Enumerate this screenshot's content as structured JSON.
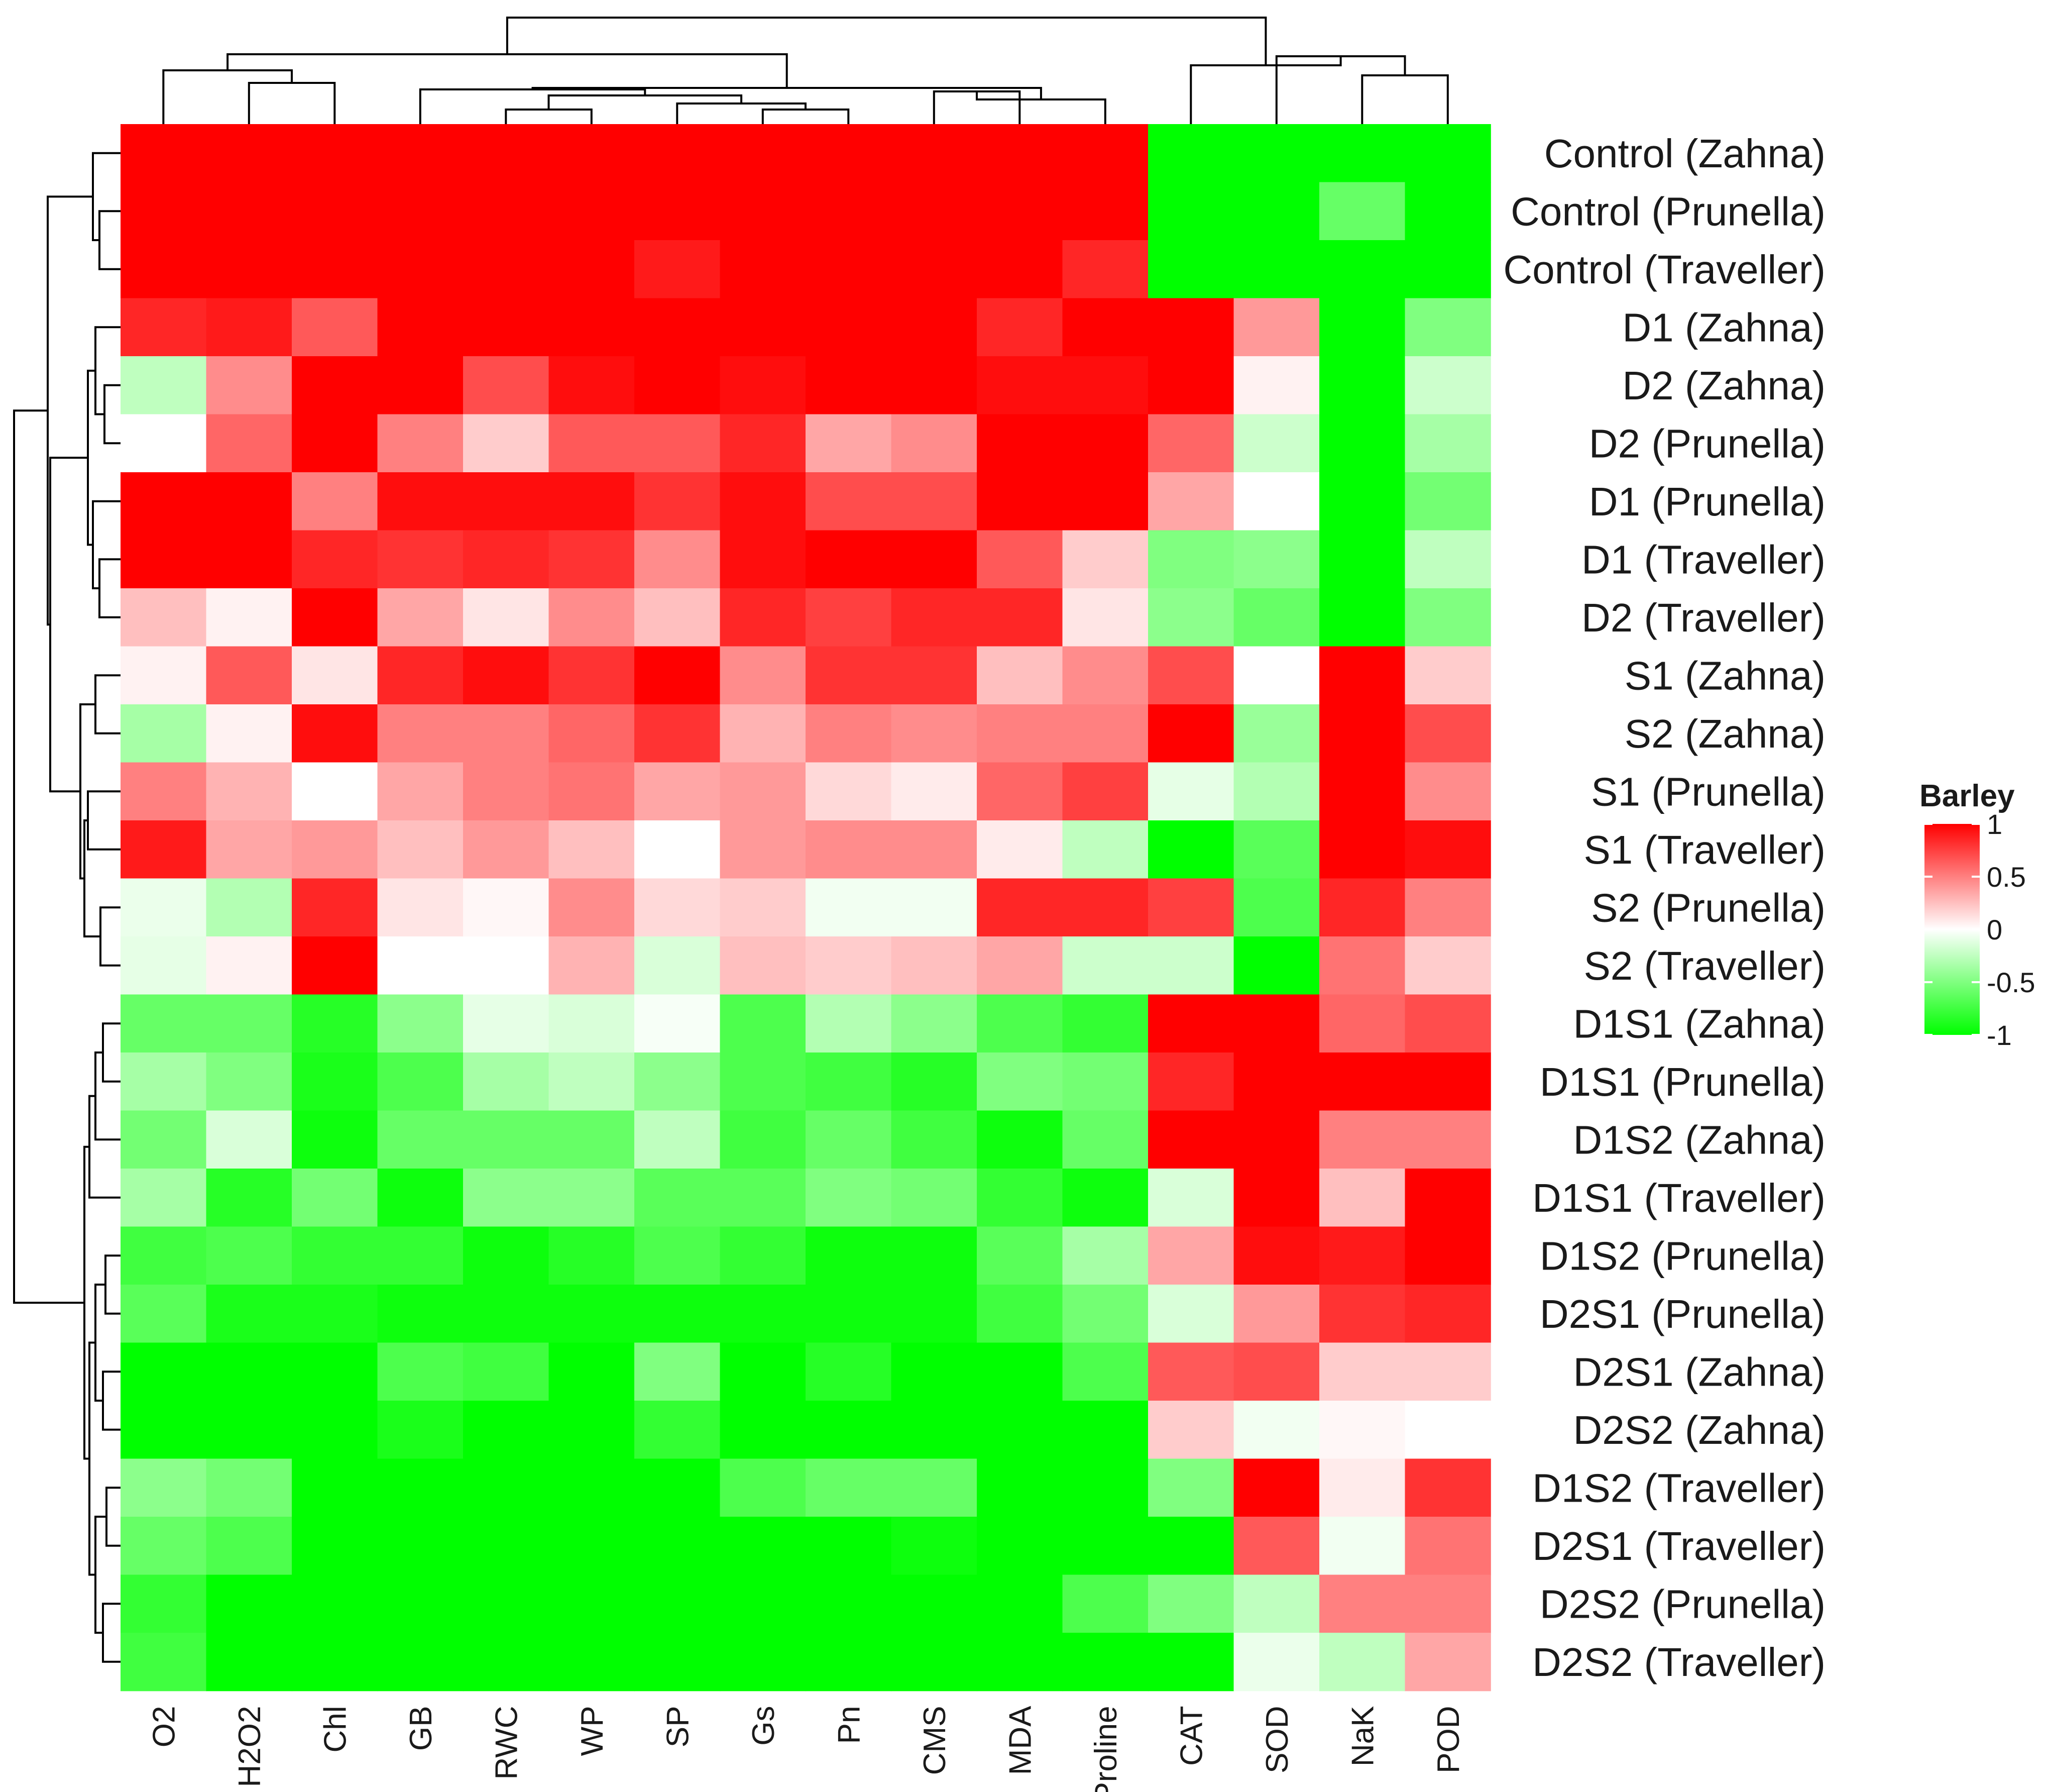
{
  "chart_data": {
    "type": "heatmap",
    "columns": [
      "O2",
      "H2O2",
      "Chl",
      "GB",
      "RWC",
      "WP",
      "SP",
      "Gs",
      "Pn",
      "CMS",
      "MDA",
      "Proline",
      "CAT",
      "SOD",
      "NaK",
      "POD"
    ],
    "rows": [
      "Control (Zahna)",
      "Control (Prunella)",
      "Control (Traveller)",
      "D1 (Zahna)",
      "D2 (Zahna)",
      "D2 (Prunella)",
      "D1 (Prunella)",
      "D1 (Traveller)",
      "D2 (Traveller)",
      "S1 (Zahna)",
      "S2 (Zahna)",
      "S1 (Prunella)",
      "S1 (Traveller)",
      "S2 (Prunella)",
      "S2 (Traveller)",
      "D1S1 (Zahna)",
      "D1S1 (Prunella)",
      "D1S2 (Zahna)",
      "D1S1 (Traveller)",
      "D1S2 (Prunella)",
      "D2S1 (Prunella)",
      "D2S1 (Zahna)",
      "D2S2 (Zahna)",
      "D1S2 (Traveller)",
      "D2S1 (Traveller)",
      "D2S2 (Prunella)",
      "D2S2 (Traveller)"
    ],
    "values": [
      [
        1,
        1,
        1,
        1,
        1,
        1,
        1,
        1,
        1,
        1,
        1,
        1,
        -1,
        -1,
        -1,
        -1
      ],
      [
        1,
        1,
        1,
        1,
        1,
        1,
        1,
        1,
        1,
        1,
        1,
        1,
        -1,
        -1,
        -0.6,
        -1
      ],
      [
        1,
        1,
        1,
        1,
        1,
        1,
        0.9,
        1,
        1,
        1,
        1,
        0.85,
        -1,
        -1,
        -1,
        -1
      ],
      [
        0.85,
        0.9,
        0.65,
        1,
        1,
        1,
        1,
        1,
        1,
        1,
        0.85,
        1,
        1,
        0.4,
        -1,
        -0.5
      ],
      [
        -0.25,
        0.45,
        1,
        1,
        0.7,
        0.95,
        1,
        0.95,
        1,
        1,
        0.95,
        0.95,
        1,
        0.05,
        -1,
        -0.2
      ],
      [
        0,
        0.6,
        1,
        0.5,
        0.2,
        0.65,
        0.65,
        0.85,
        0.35,
        0.45,
        1,
        1,
        0.6,
        -0.2,
        -1,
        -0.35
      ],
      [
        1,
        1,
        0.5,
        0.95,
        0.95,
        0.95,
        0.8,
        0.95,
        0.7,
        0.7,
        1,
        1,
        0.35,
        0,
        -1,
        -0.55
      ],
      [
        1,
        1,
        0.85,
        0.8,
        0.85,
        0.8,
        0.45,
        0.95,
        1,
        1,
        0.65,
        0.2,
        -0.5,
        -0.45,
        -1,
        -0.25
      ],
      [
        0.25,
        0.05,
        1,
        0.35,
        0.1,
        0.45,
        0.25,
        0.85,
        0.75,
        0.85,
        0.85,
        0.1,
        -0.45,
        -0.6,
        -1,
        -0.5
      ],
      [
        0.05,
        0.65,
        0.1,
        0.85,
        0.95,
        0.8,
        1,
        0.45,
        0.8,
        0.8,
        0.25,
        0.45,
        0.7,
        0,
        1,
        0.2
      ],
      [
        -0.35,
        0.05,
        0.95,
        0.5,
        0.5,
        0.6,
        0.8,
        0.3,
        0.5,
        0.45,
        0.5,
        0.5,
        1,
        -0.4,
        1,
        0.7
      ],
      [
        0.5,
        0.3,
        0,
        0.35,
        0.5,
        0.55,
        0.35,
        0.4,
        0.15,
        0.08,
        0.6,
        0.75,
        -0.1,
        -0.3,
        1,
        0.45
      ],
      [
        0.9,
        0.35,
        0.4,
        0.25,
        0.4,
        0.25,
        0,
        0.4,
        0.45,
        0.45,
        0.08,
        -0.25,
        -1,
        -0.65,
        1,
        0.95
      ],
      [
        -0.08,
        -0.3,
        0.85,
        0.1,
        0.03,
        0.45,
        0.15,
        0.2,
        -0.05,
        -0.05,
        0.85,
        0.85,
        0.75,
        -0.7,
        0.85,
        0.5
      ],
      [
        -0.1,
        0.05,
        1,
        0,
        0,
        0.3,
        -0.15,
        0.25,
        0.2,
        0.25,
        0.35,
        -0.2,
        -0.2,
        -1,
        0.55,
        0.2
      ],
      [
        -0.6,
        -0.6,
        -0.85,
        -0.45,
        -0.1,
        -0.15,
        -0.03,
        -0.7,
        -0.3,
        -0.45,
        -0.7,
        -0.8,
        1,
        1,
        0.6,
        0.7
      ],
      [
        -0.35,
        -0.5,
        -0.9,
        -0.7,
        -0.35,
        -0.25,
        -0.45,
        -0.7,
        -0.75,
        -0.85,
        -0.5,
        -0.55,
        0.85,
        1,
        1,
        1
      ],
      [
        -0.55,
        -0.15,
        -0.95,
        -0.6,
        -0.6,
        -0.6,
        -0.25,
        -0.75,
        -0.6,
        -0.75,
        -0.95,
        -0.6,
        1,
        1,
        0.5,
        0.5
      ],
      [
        -0.35,
        -0.85,
        -0.55,
        -0.95,
        -0.45,
        -0.45,
        -0.65,
        -0.65,
        -0.5,
        -0.55,
        -0.8,
        -0.95,
        -0.15,
        1,
        0.25,
        1
      ],
      [
        -0.75,
        -0.7,
        -0.8,
        -0.8,
        -0.95,
        -0.85,
        -0.7,
        -0.8,
        -0.95,
        -0.95,
        -0.65,
        -0.35,
        0.35,
        0.95,
        0.9,
        1
      ],
      [
        -0.65,
        -0.9,
        -0.9,
        -0.95,
        -0.95,
        -0.95,
        -0.95,
        -0.95,
        -0.95,
        -0.95,
        -0.75,
        -0.55,
        -0.15,
        0.4,
        0.8,
        0.85
      ],
      [
        -1,
        -1,
        -1,
        -0.7,
        -0.75,
        -1,
        -0.5,
        -1,
        -0.85,
        -1,
        -1,
        -0.7,
        0.65,
        0.7,
        0.2,
        0.2
      ],
      [
        -1,
        -1,
        -1,
        -0.9,
        -1,
        -1,
        -0.8,
        -1,
        -1,
        -1,
        -1,
        -1,
        0.2,
        -0.05,
        0.03,
        0
      ],
      [
        -0.45,
        -0.55,
        -1,
        -1,
        -1,
        -1,
        -1,
        -0.7,
        -0.6,
        -0.6,
        -1,
        -1,
        -0.5,
        1,
        0.08,
        0.8
      ],
      [
        -0.6,
        -0.7,
        -1,
        -1,
        -1,
        -1,
        -1,
        -1,
        -1,
        -0.95,
        -1,
        -1,
        -1,
        0.65,
        -0.05,
        0.55
      ],
      [
        -0.8,
        -1,
        -1,
        -1,
        -1,
        -1,
        -1,
        -1,
        -1,
        -1,
        -1,
        -0.7,
        -0.5,
        -0.25,
        0.5,
        0.5
      ],
      [
        -0.75,
        -1,
        -1,
        -1,
        -1,
        -1,
        -1,
        -1,
        -1,
        -1,
        -1,
        -1,
        -1,
        -0.08,
        -0.25,
        0.35
      ]
    ],
    "value_range": [
      -1,
      1
    ],
    "color_scale": {
      "low": "#00ff00",
      "mid": "#ffffff",
      "high": "#ff0000"
    },
    "legend": {
      "title": "Barley",
      "ticks": [
        "1",
        "0.5",
        "0",
        "-0.5",
        "-1"
      ],
      "tick_values": [
        1,
        0.5,
        0,
        -0.5,
        -1
      ],
      "placement": "right"
    },
    "column_dendrogram": true,
    "row_dendrogram": true
  }
}
